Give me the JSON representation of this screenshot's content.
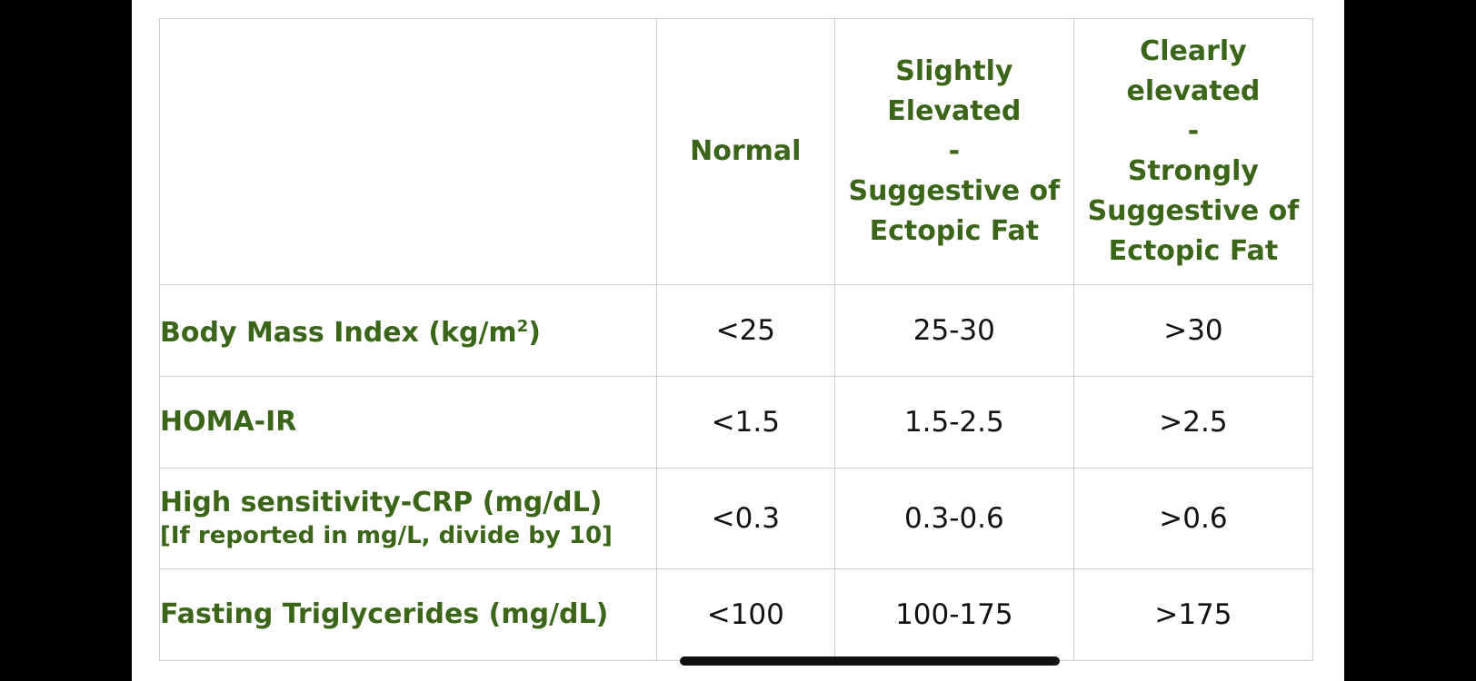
{
  "table": {
    "columns": [
      "",
      "Normal",
      "Slightly\nElevated\n-\nSuggestive of\nEctopic Fat",
      "Clearly\nelevated\n-\nStrongly\nSuggestive of\nEctopic Fat"
    ],
    "rows": [
      {
        "label": "Body Mass Index (kg/m",
        "label_sup": "2",
        "label_suffix": ")",
        "note": "",
        "values": [
          "<25",
          "25-30",
          ">30"
        ]
      },
      {
        "label": "HOMA-IR",
        "note": "",
        "values": [
          "<1.5",
          "1.5-2.5",
          ">2.5"
        ]
      },
      {
        "label": "High sensitivity-CRP (mg/dL)",
        "note": "[If reported in mg/L, divide by 10]",
        "values": [
          "<0.3",
          "0.3-0.6",
          ">0.6"
        ]
      },
      {
        "label": "Fasting Triglycerides (mg/dL)",
        "note": "",
        "values": [
          "<100",
          "100-175",
          ">175"
        ]
      }
    ]
  },
  "colors": {
    "label_green": "#3b6518",
    "value_text": "#111111",
    "grid": "#cfcfcf"
  }
}
